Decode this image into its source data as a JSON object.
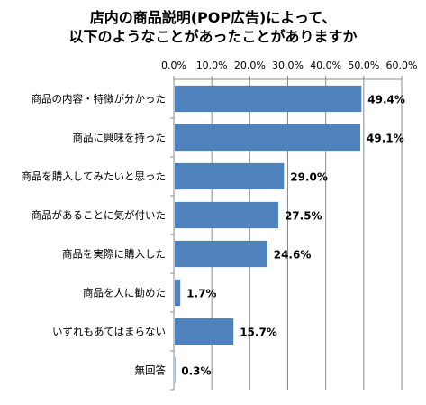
{
  "chart_data": {
    "type": "bar",
    "orientation": "horizontal",
    "title_lines": [
      "店内の商品説明(POP広告)によって、",
      "以下のようなことがあったことがありますか"
    ],
    "categories": [
      "商品の内容・特徴が分かった",
      "商品に興味を持った",
      "商品を購入してみたいと思った",
      "商品があることに気が付いた",
      "商品を実際に購入した",
      "商品を人に勧めた",
      "いずれもあてはまらない",
      "無回答"
    ],
    "values": [
      49.4,
      49.1,
      29.0,
      27.5,
      24.6,
      1.7,
      15.7,
      0.3
    ],
    "value_labels": [
      "49.4%",
      "49.1%",
      "29.0%",
      "27.5%",
      "24.6%",
      "1.7%",
      "15.7%",
      "0.3%"
    ],
    "xlim": [
      0,
      60
    ],
    "ticks": [
      0,
      10,
      20,
      30,
      40,
      50,
      60
    ],
    "tick_labels": [
      "0.0%",
      "10.0%",
      "20.0%",
      "30.0%",
      "40.0%",
      "50.0%",
      "60.0%"
    ],
    "axis_position": "top",
    "grid": true,
    "legend": "none",
    "bar_color": "#4F81BD",
    "grid_color": "#8c8c8c"
  }
}
